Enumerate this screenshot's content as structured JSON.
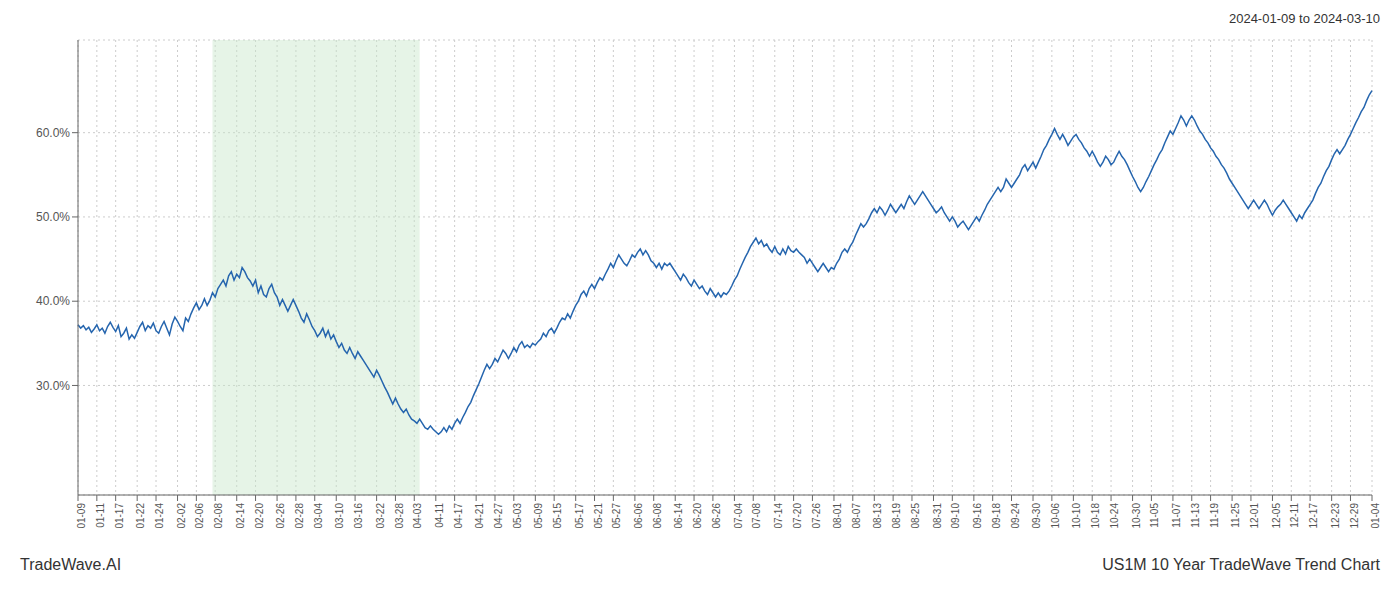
{
  "chart_data": {
    "type": "line",
    "title": "US1M 10 Year TradeWave Trend Chart",
    "subtitle": "2024-01-09 to 2024-03-10",
    "annotations": [
      "TradeWave.AI"
    ],
    "categories": [
      "01-09",
      null,
      null,
      null,
      null,
      null,
      null,
      "01-11",
      null,
      null,
      null,
      null,
      null,
      null,
      "01-17",
      null,
      null,
      null,
      null,
      null,
      null,
      null,
      "01-22",
      null,
      null,
      null,
      null,
      null,
      null,
      "01-24",
      null,
      null,
      null,
      null,
      null,
      null,
      null,
      "02-02",
      null,
      null,
      null,
      null,
      null,
      null,
      "02-06",
      null,
      null,
      null,
      null,
      null,
      null,
      "02-08",
      null,
      null,
      null,
      null,
      null,
      null,
      null,
      "02-14",
      null,
      null,
      null,
      null,
      null,
      null,
      "02-20",
      null,
      null,
      null,
      null,
      null,
      null,
      null,
      "02-26",
      null,
      null,
      null,
      null,
      null,
      null,
      "02-28",
      null,
      null,
      null,
      null,
      null,
      null,
      "03-04",
      null,
      null,
      null,
      null,
      null,
      null,
      null,
      "03-10",
      null,
      null,
      null,
      null,
      null,
      null,
      "03-16",
      null,
      null,
      null,
      null,
      null,
      null,
      null,
      "03-22",
      null,
      null,
      null,
      null,
      null,
      null,
      "03-28",
      null,
      null,
      null,
      null,
      null,
      null,
      "04-03",
      null,
      null,
      null,
      null,
      null,
      null,
      null,
      "04-11",
      null,
      null,
      null,
      null,
      null,
      null,
      "04-17",
      null,
      null,
      null,
      null,
      null,
      null,
      null,
      "04-21",
      null,
      null,
      null,
      null,
      null,
      null,
      "04-27",
      null,
      null,
      null,
      null,
      null,
      null,
      "05-03",
      null,
      null,
      null,
      null,
      null,
      null,
      null,
      "05-09",
      null,
      null,
      null,
      null,
      null,
      null,
      "05-15",
      null,
      null,
      null,
      null,
      null,
      null,
      null,
      "05-17",
      null,
      null,
      null,
      null,
      null,
      null,
      "05-21",
      null,
      null,
      null,
      null,
      null,
      null,
      "05-27",
      null,
      null,
      null,
      null,
      null,
      null,
      null,
      "06-06",
      null,
      null,
      null,
      null,
      null,
      null,
      "06-08",
      null,
      null,
      null,
      null,
      null,
      null,
      null,
      "06-14",
      null,
      null,
      null,
      null,
      null,
      null,
      "06-20",
      null,
      null,
      null,
      null,
      null,
      null,
      "06-26",
      null,
      null,
      null,
      null,
      null,
      null,
      null,
      "07-04",
      null,
      null,
      null,
      null,
      null,
      null,
      "07-08",
      null,
      null,
      null,
      null,
      null,
      null,
      null,
      "07-14",
      null,
      null,
      null,
      null,
      null,
      null,
      "07-20",
      null,
      null,
      null,
      null,
      null,
      null,
      "07-26",
      null,
      null,
      null,
      null,
      null,
      null,
      null,
      "08-01",
      null,
      null,
      null,
      null,
      null,
      null,
      "08-07",
      null,
      null,
      null,
      null,
      null,
      null,
      null,
      "08-13",
      null,
      null,
      null,
      null,
      null,
      null,
      "08-19",
      null,
      null,
      null,
      null,
      null,
      null,
      "08-25",
      null,
      null,
      null,
      null,
      null,
      null,
      null,
      "08-31",
      null,
      null,
      null,
      null,
      null,
      null,
      "09-10",
      null,
      null,
      null,
      null,
      null,
      null,
      null,
      "09-16",
      null,
      null,
      null,
      null,
      null,
      null,
      "09-18",
      null,
      null,
      null,
      null,
      null,
      null,
      "09-24",
      null,
      null,
      null,
      null,
      null,
      null,
      null,
      "09-30",
      null,
      null,
      null,
      null,
      null,
      null,
      "10-06",
      null,
      null,
      null,
      null,
      null,
      null,
      null,
      "10-10",
      null,
      null,
      null,
      null,
      null,
      null,
      "10-18",
      null,
      null,
      null,
      null,
      null,
      null,
      "10-24",
      null,
      null,
      null,
      null,
      null,
      null,
      null,
      "10-30",
      null,
      null,
      null,
      null,
      null,
      null,
      "11-05",
      null,
      null,
      null,
      null,
      null,
      null,
      null,
      "11-07",
      null,
      null,
      null,
      null,
      null,
      null,
      "11-13",
      null,
      null,
      null,
      null,
      null,
      null,
      "11-19",
      null,
      null,
      null,
      null,
      null,
      null,
      null,
      "11-25",
      null,
      null,
      null,
      null,
      null,
      null,
      "12-01",
      null,
      null,
      null,
      null,
      null,
      null,
      null,
      "12-05",
      null,
      null,
      null,
      null,
      null,
      null,
      "12-11",
      null,
      null,
      null,
      null,
      null,
      null,
      "12-17",
      null,
      null,
      null,
      null,
      null,
      null,
      null,
      "12-23",
      null,
      null,
      null,
      null,
      null,
      null,
      "12-29",
      null,
      null,
      null,
      null,
      null,
      null,
      null,
      "01-04"
    ],
    "values": [
      0.372,
      0.368,
      0.371,
      0.366,
      0.369,
      0.363,
      0.367,
      0.372,
      0.365,
      0.368,
      0.362,
      0.37,
      0.375,
      0.369,
      0.364,
      0.371,
      0.358,
      0.362,
      0.368,
      0.355,
      0.36,
      0.356,
      0.363,
      0.37,
      0.375,
      0.365,
      0.371,
      0.368,
      0.374,
      0.365,
      0.362,
      0.37,
      0.376,
      0.368,
      0.36,
      0.373,
      0.381,
      0.376,
      0.37,
      0.365,
      0.38,
      0.376,
      0.385,
      0.392,
      0.398,
      0.39,
      0.395,
      0.403,
      0.395,
      0.401,
      0.41,
      0.405,
      0.415,
      0.42,
      0.425,
      0.418,
      0.43,
      0.435,
      0.425,
      0.432,
      0.428,
      0.44,
      0.435,
      0.428,
      0.424,
      0.418,
      0.425,
      0.41,
      0.418,
      0.408,
      0.405,
      0.415,
      0.42,
      0.41,
      0.405,
      0.395,
      0.402,
      0.395,
      0.388,
      0.395,
      0.402,
      0.395,
      0.388,
      0.38,
      0.375,
      0.385,
      0.378,
      0.37,
      0.365,
      0.358,
      0.362,
      0.368,
      0.358,
      0.365,
      0.355,
      0.36,
      0.352,
      0.345,
      0.35,
      0.342,
      0.338,
      0.345,
      0.338,
      0.332,
      0.34,
      0.335,
      0.33,
      0.325,
      0.32,
      0.315,
      0.31,
      0.318,
      0.312,
      0.305,
      0.298,
      0.292,
      0.285,
      0.278,
      0.285,
      0.278,
      0.272,
      0.268,
      0.272,
      0.265,
      0.26,
      0.258,
      0.255,
      0.26,
      0.255,
      0.25,
      0.248,
      0.252,
      0.248,
      0.245,
      0.242,
      0.245,
      0.25,
      0.245,
      0.252,
      0.248,
      0.255,
      0.26,
      0.255,
      0.262,
      0.268,
      0.275,
      0.28,
      0.288,
      0.295,
      0.302,
      0.31,
      0.318,
      0.325,
      0.32,
      0.325,
      0.332,
      0.328,
      0.335,
      0.342,
      0.338,
      0.332,
      0.338,
      0.345,
      0.34,
      0.348,
      0.352,
      0.345,
      0.348,
      0.345,
      0.35,
      0.348,
      0.352,
      0.355,
      0.362,
      0.358,
      0.365,
      0.368,
      0.362,
      0.368,
      0.375,
      0.38,
      0.378,
      0.385,
      0.38,
      0.388,
      0.395,
      0.4,
      0.408,
      0.412,
      0.406,
      0.415,
      0.42,
      0.415,
      0.422,
      0.428,
      0.425,
      0.432,
      0.438,
      0.445,
      0.44,
      0.448,
      0.455,
      0.45,
      0.445,
      0.442,
      0.448,
      0.455,
      0.452,
      0.458,
      0.462,
      0.455,
      0.46,
      0.455,
      0.448,
      0.445,
      0.44,
      0.445,
      0.438,
      0.445,
      0.442,
      0.445,
      0.44,
      0.435,
      0.43,
      0.425,
      0.432,
      0.428,
      0.422,
      0.418,
      0.425,
      0.42,
      0.415,
      0.418,
      0.412,
      0.408,
      0.415,
      0.41,
      0.405,
      0.41,
      0.405,
      0.41,
      0.408,
      0.412,
      0.418,
      0.425,
      0.43,
      0.438,
      0.445,
      0.452,
      0.458,
      0.465,
      0.47,
      0.475,
      0.468,
      0.472,
      0.465,
      0.468,
      0.462,
      0.458,
      0.465,
      0.458,
      0.455,
      0.462,
      0.456,
      0.465,
      0.46,
      0.458,
      0.462,
      0.458,
      0.455,
      0.452,
      0.445,
      0.45,
      0.445,
      0.44,
      0.435,
      0.44,
      0.445,
      0.44,
      0.435,
      0.44,
      0.438,
      0.445,
      0.45,
      0.458,
      0.462,
      0.458,
      0.465,
      0.47,
      0.478,
      0.485,
      0.492,
      0.488,
      0.492,
      0.498,
      0.505,
      0.51,
      0.505,
      0.512,
      0.508,
      0.502,
      0.508,
      0.515,
      0.51,
      0.505,
      0.51,
      0.515,
      0.51,
      0.518,
      0.525,
      0.52,
      0.515,
      0.52,
      0.525,
      0.53,
      0.525,
      0.52,
      0.515,
      0.51,
      0.505,
      0.508,
      0.512,
      0.505,
      0.5,
      0.495,
      0.5,
      0.495,
      0.488,
      0.492,
      0.495,
      0.49,
      0.485,
      0.49,
      0.495,
      0.5,
      0.495,
      0.502,
      0.508,
      0.515,
      0.52,
      0.525,
      0.53,
      0.535,
      0.53,
      0.535,
      0.545,
      0.54,
      0.535,
      0.54,
      0.545,
      0.55,
      0.558,
      0.562,
      0.555,
      0.56,
      0.565,
      0.558,
      0.565,
      0.572,
      0.58,
      0.585,
      0.592,
      0.598,
      0.605,
      0.598,
      0.592,
      0.598,
      0.592,
      0.585,
      0.59,
      0.595,
      0.598,
      0.592,
      0.588,
      0.582,
      0.578,
      0.572,
      0.578,
      0.572,
      0.565,
      0.56,
      0.565,
      0.572,
      0.568,
      0.562,
      0.565,
      0.572,
      0.578,
      0.572,
      0.568,
      0.562,
      0.555,
      0.548,
      0.542,
      0.535,
      0.53,
      0.535,
      0.542,
      0.548,
      0.555,
      0.562,
      0.568,
      0.575,
      0.58,
      0.588,
      0.595,
      0.602,
      0.598,
      0.605,
      0.612,
      0.62,
      0.615,
      0.608,
      0.615,
      0.62,
      0.615,
      0.608,
      0.602,
      0.598,
      0.592,
      0.588,
      0.582,
      0.578,
      0.572,
      0.568,
      0.562,
      0.558,
      0.552,
      0.545,
      0.54,
      0.535,
      0.53,
      0.525,
      0.52,
      0.515,
      0.51,
      0.515,
      0.52,
      0.515,
      0.51,
      0.515,
      0.52,
      0.515,
      0.508,
      0.502,
      0.508,
      0.512,
      0.515,
      0.52,
      0.515,
      0.51,
      0.505,
      0.5,
      0.495,
      0.502,
      0.498,
      0.505,
      0.51,
      0.515,
      0.52,
      0.528,
      0.535,
      0.54,
      0.548,
      0.555,
      0.56,
      0.568,
      0.575,
      0.58,
      0.575,
      0.58,
      0.585,
      0.592,
      0.598,
      0.605,
      0.612,
      0.618,
      0.625,
      0.63,
      0.638,
      0.645,
      0.65
    ],
    "color": "#2565ae",
    "ylim": [
      0.17,
      0.71
    ],
    "yticks": [
      {
        "value": 0.3,
        "label": "30.0%"
      },
      {
        "value": 0.4,
        "label": "40.0%"
      },
      {
        "value": 0.5,
        "label": "50.0%"
      },
      {
        "value": 0.6,
        "label": "60.0%"
      }
    ],
    "grid": true,
    "highlight": {
      "start": 50,
      "end": 127,
      "color": "#c8e6c9"
    }
  }
}
